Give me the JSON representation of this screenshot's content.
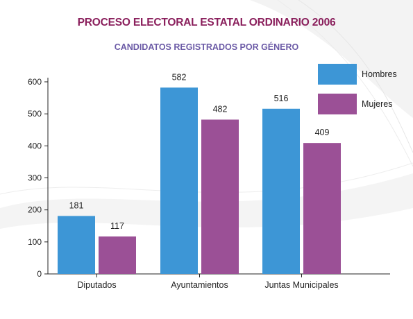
{
  "chart_data": {
    "type": "bar",
    "title": "PROCESO ELECTORAL ESTATAL ORDINARIO 2006",
    "subtitle": "CANDIDATOS REGISTRADOS POR GÉNERO",
    "categories": [
      "Diputados",
      "Ayuntamientos",
      "Juntas Municipales"
    ],
    "series": [
      {
        "name": "Hombres",
        "values": [
          181,
          582,
          516
        ],
        "color": "#3d96d6"
      },
      {
        "name": "Mujeres",
        "values": [
          117,
          482,
          409
        ],
        "color": "#9b5096"
      }
    ],
    "ylim": [
      0,
      600
    ],
    "yticks": [
      0,
      100,
      200,
      300,
      400,
      500,
      600
    ],
    "xlabel": "",
    "ylabel": "",
    "legend": "top-right",
    "grid": false,
    "colors": {
      "title": "#8a1f5c",
      "subtitle": "#6b5aa6"
    }
  }
}
